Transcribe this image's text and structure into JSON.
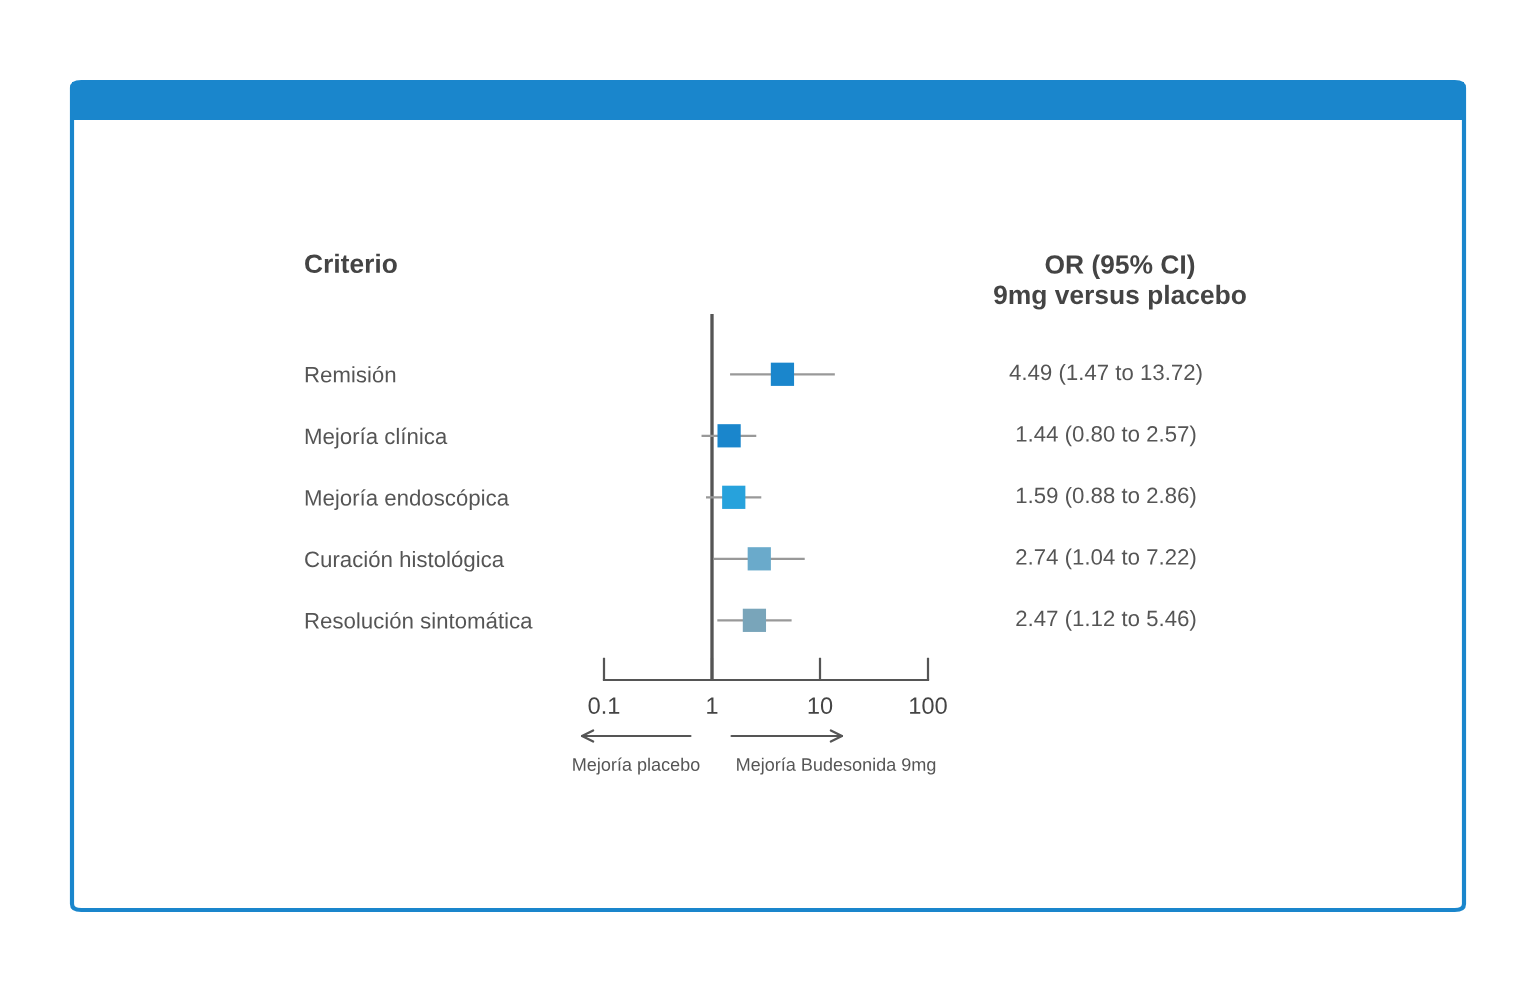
{
  "chart_data": {
    "type": "scatter",
    "orientation": "horizontal",
    "log": "x",
    "ylabel": "Criterio",
    "y2label": "OR (95% CI)\n9mg versus placebo",
    "categories": [
      "Remisión",
      "Mejoría clínica",
      "Mejoría endoscópica",
      "Curación histológica",
      "Resolución sintomática"
    ],
    "values": [
      4.49,
      1.44,
      1.59,
      2.74,
      2.47
    ],
    "errors": [
      [
        1.47,
        13.72
      ],
      [
        0.8,
        2.57
      ],
      [
        0.88,
        2.86
      ],
      [
        1.04,
        7.22
      ],
      [
        1.12,
        5.46
      ]
    ],
    "value_labels": [
      "4.49 (1.47 to 13.72)",
      "1.44 (0.80 to 2.57)",
      "1.59 (0.88 to 2.86)",
      "2.74 (1.04 to 7.22)",
      "2.47 (1.12 to 5.46)"
    ],
    "colors": [
      "#1a86cc",
      "#1a86cc",
      "#27a2dc",
      "#6aaacb",
      "#79a5ba"
    ],
    "marker": "square",
    "grid": false,
    "xlim": [
      0.1,
      100
    ],
    "xticks": [
      0.1,
      1,
      10,
      100
    ],
    "ref_lines": [
      {
        "axis": "x",
        "value": 1,
        "label": null,
        "color": "#555555"
      }
    ],
    "annotations": [
      "Mejoría placebo",
      "Mejoría Budesonida 9mg"
    ]
  }
}
